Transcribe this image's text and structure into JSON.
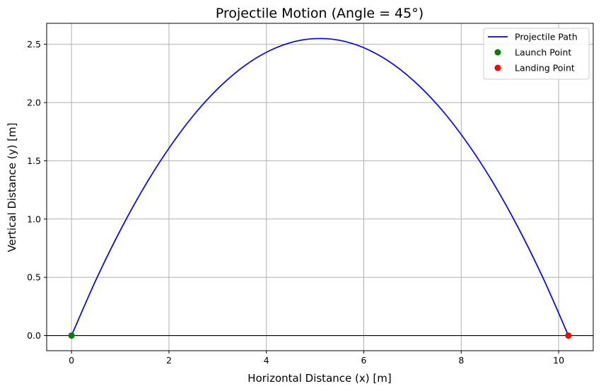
{
  "chart_data": {
    "type": "line",
    "title": "Projectile Motion (Angle = 45°)",
    "xlabel": "Horizontal Distance (x) [m]",
    "ylabel": "Vertical Distance (y) [m]",
    "xlim": [
      -0.51,
      10.71
    ],
    "ylim": [
      -0.13,
      2.68
    ],
    "xticks": [
      0,
      2,
      4,
      6,
      8,
      10
    ],
    "xtick_labels": [
      "0",
      "2",
      "4",
      "6",
      "8",
      "10"
    ],
    "yticks": [
      0.0,
      0.5,
      1.0,
      1.5,
      2.0,
      2.5
    ],
    "ytick_labels": [
      "0.0",
      "0.5",
      "1.0",
      "1.5",
      "2.0",
      "2.5"
    ],
    "grid": true,
    "legend_position": "top-right",
    "series": [
      {
        "name": "Projectile Path",
        "kind": "line",
        "color": "#0000ff",
        "x": [
          0,
          0.51,
          1.02,
          1.53,
          2.04,
          2.55,
          3.06,
          3.57,
          4.08,
          4.59,
          5.1,
          5.61,
          6.12,
          6.63,
          7.14,
          7.65,
          8.16,
          8.67,
          9.18,
          9.69,
          10.2
        ],
        "y": [
          0,
          0.485,
          0.918,
          1.301,
          1.632,
          1.913,
          2.142,
          2.321,
          2.448,
          2.525,
          2.55,
          2.525,
          2.448,
          2.321,
          2.142,
          1.913,
          1.632,
          1.301,
          0.918,
          0.485,
          0
        ]
      },
      {
        "name": "Launch Point",
        "kind": "scatter",
        "color": "#008000",
        "x": [
          0
        ],
        "y": [
          0
        ]
      },
      {
        "name": "Landing Point",
        "kind": "scatter",
        "color": "#ff0000",
        "x": [
          10.2
        ],
        "y": [
          0
        ]
      }
    ],
    "reference_lines": [
      {
        "axis": "y",
        "value": 0,
        "color": "#000000"
      }
    ]
  }
}
